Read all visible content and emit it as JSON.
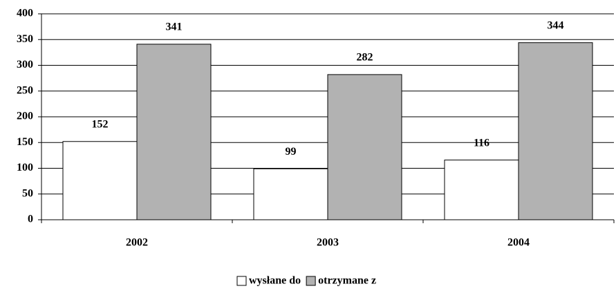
{
  "chart_data": {
    "type": "bar",
    "categories": [
      "2002",
      "2003",
      "2004"
    ],
    "series": [
      {
        "name": "wysłane do",
        "color": "#ffffff",
        "values": [
          152,
          99,
          116
        ]
      },
      {
        "name": "otrzymane z",
        "color": "#b2b2b2",
        "values": [
          341,
          282,
          344
        ]
      }
    ],
    "ylim": [
      0,
      400
    ],
    "yticks": [
      0,
      50,
      100,
      150,
      200,
      250,
      300,
      350,
      400
    ],
    "grid": true,
    "legend": "bottom"
  }
}
